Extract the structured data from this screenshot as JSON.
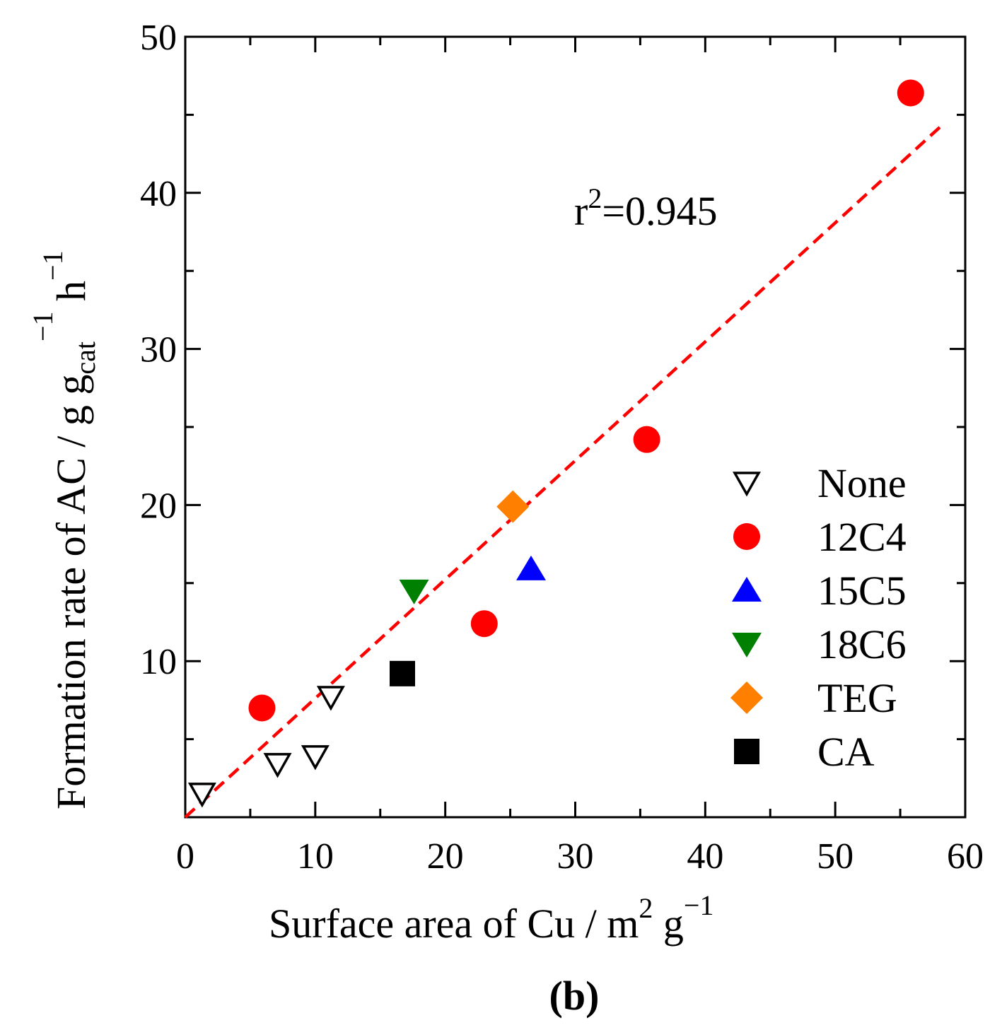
{
  "chart_data": {
    "type": "scatter",
    "title": "",
    "panel_label": "(b)",
    "xlabel": {
      "main": "Surface area of Cu / m",
      "sup1": "2",
      "mid": " g",
      "sup2": "−1"
    },
    "ylabel": {
      "main": "Formation rate of AC / g g",
      "sub": "cat",
      "sup1": "−1",
      "mid": " h",
      "sup2": "−1"
    },
    "xlim": [
      0,
      60
    ],
    "ylim": [
      0,
      50
    ],
    "xticks": [
      0,
      10,
      20,
      30,
      40,
      50,
      60
    ],
    "yticks": [
      10,
      20,
      30,
      40,
      50
    ],
    "xtick_labels": [
      "0",
      "10",
      "20",
      "30",
      "40",
      "50",
      "60"
    ],
    "ytick_labels": [
      "10",
      "20",
      "30",
      "40",
      "50"
    ],
    "grid": false,
    "legend_position": "lower-right",
    "series": [
      {
        "name": "None",
        "marker": "triangle-down-open",
        "color": "#000000",
        "points": [
          [
            1.3,
            1.5
          ],
          [
            7.1,
            3.4
          ],
          [
            10.0,
            3.9
          ],
          [
            11.2,
            7.7
          ]
        ]
      },
      {
        "name": "12C4",
        "marker": "circle",
        "color": "#ff0000",
        "points": [
          [
            5.9,
            7.0
          ],
          [
            23.0,
            12.4
          ],
          [
            35.5,
            24.2
          ],
          [
            55.8,
            46.4
          ]
        ]
      },
      {
        "name": "15C5",
        "marker": "triangle-up",
        "color": "#0000ff",
        "points": [
          [
            26.6,
            15.9
          ]
        ]
      },
      {
        "name": "18C6",
        "marker": "triangle-down",
        "color": "#008000",
        "points": [
          [
            17.6,
            14.5
          ]
        ]
      },
      {
        "name": "TEG",
        "marker": "diamond",
        "color": "#ff8000",
        "points": [
          [
            25.2,
            19.9
          ]
        ]
      },
      {
        "name": "CA",
        "marker": "square",
        "color": "#000000",
        "points": [
          [
            16.7,
            9.2
          ]
        ]
      }
    ],
    "fit_line": {
      "style": "dashed",
      "color": "#ff0000",
      "x": [
        0,
        58.3
      ],
      "y": [
        0,
        44.4
      ]
    },
    "annotation": {
      "main": "r",
      "sup": "2",
      "rest": "=0.945"
    }
  }
}
